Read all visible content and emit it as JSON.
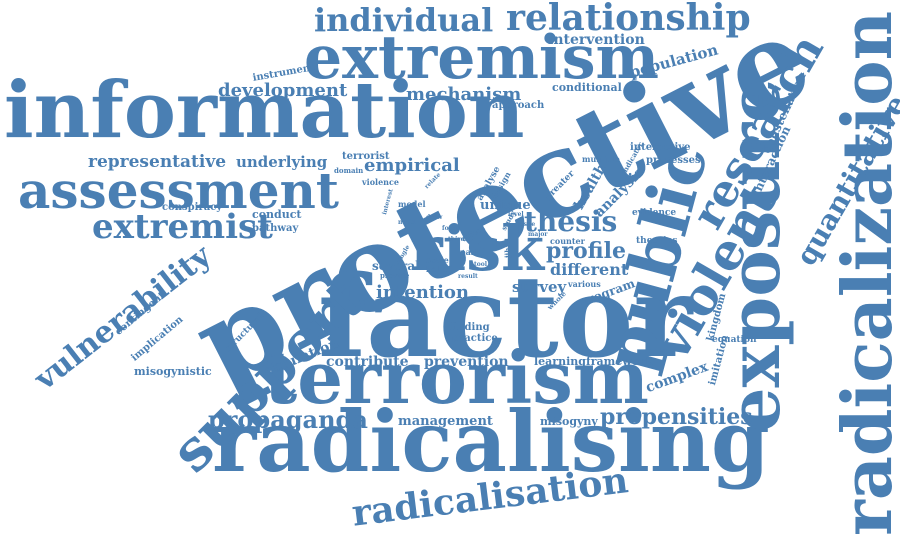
{
  "accent_color": "#4a7fb3",
  "words": {
    "protective": "protective",
    "factor": "factor",
    "information": "information",
    "radicalising": "radicalising",
    "terrorism": "terrorism",
    "radicalization": "radicalization",
    "extremism": "extremism",
    "assessment": "assessment",
    "exposure": "exposure",
    "public": "public",
    "risk": "risk",
    "support": "support",
    "violent": "violent",
    "research": "research",
    "relationship": "relationship",
    "individual": "individual",
    "radicalisation": "radicalisation",
    "extremist": "extremist",
    "vulnerability": "vulnerability",
    "quantitative": "quantitative",
    "propaganda": "propaganda",
    "propensities": "propensities",
    "thesis": "thesis",
    "profile": "profile",
    "intention": "intention",
    "mechanism": "mechanism",
    "development": "development",
    "representative": "representative",
    "underlying": "underlying",
    "empirical": "empirical",
    "intervention": "intervention",
    "population": "population",
    "constellation": "constellation",
    "interaction": "interaction",
    "different": "different",
    "survey": "survey",
    "emulation": "emulation",
    "contribute": "contribute",
    "prevention": "prevention",
    "management": "management",
    "misogyny": "misogyny",
    "misogynistic": "misogynistic",
    "complex": "complex",
    "learning_framework": "learningframework",
    "conditional": "conditional",
    "instrument": "instrument",
    "approach": "approach",
    "terrorist": "terrorist",
    "conspiracy": "conspiracy",
    "conduct": "conduct",
    "pathway": "pathway",
    "health": "health",
    "analysis": "analysis",
    "unique": "unique",
    "several": "several",
    "program": "program",
    "kingdom": "kingdom",
    "equation": "equation",
    "imitation": "imitation",
    "implication": "implication",
    "contingent": "contingent",
    "structural": "structural",
    "finding": "finding",
    "practice": "practice",
    "interactive": "interactive",
    "processes": "processes",
    "multiple": "multiple",
    "evidence": "evidence",
    "theories": "theories",
    "counter": "counter",
    "various": "various",
    "violence": "violence",
    "domain": "domain",
    "model": "model",
    "analyse": "analyse",
    "design": "design",
    "greater": "greater",
    "indicator": "indicator",
    "scale": "scale",
    "belief": "belief",
    "provide": "provide",
    "effect": "effect",
    "jihad": "jihad",
    "study": "study",
    "whole": "whole",
    "level": "level",
    "issue": "issue",
    "third": "third",
    "novel": "novel",
    "draw": "draw",
    "result": "result",
    "single": "single",
    "part": "part",
    "relate": "relate",
    "interest": "interest",
    "focus": "focus",
    "tool": "tool",
    "major": "major"
  }
}
